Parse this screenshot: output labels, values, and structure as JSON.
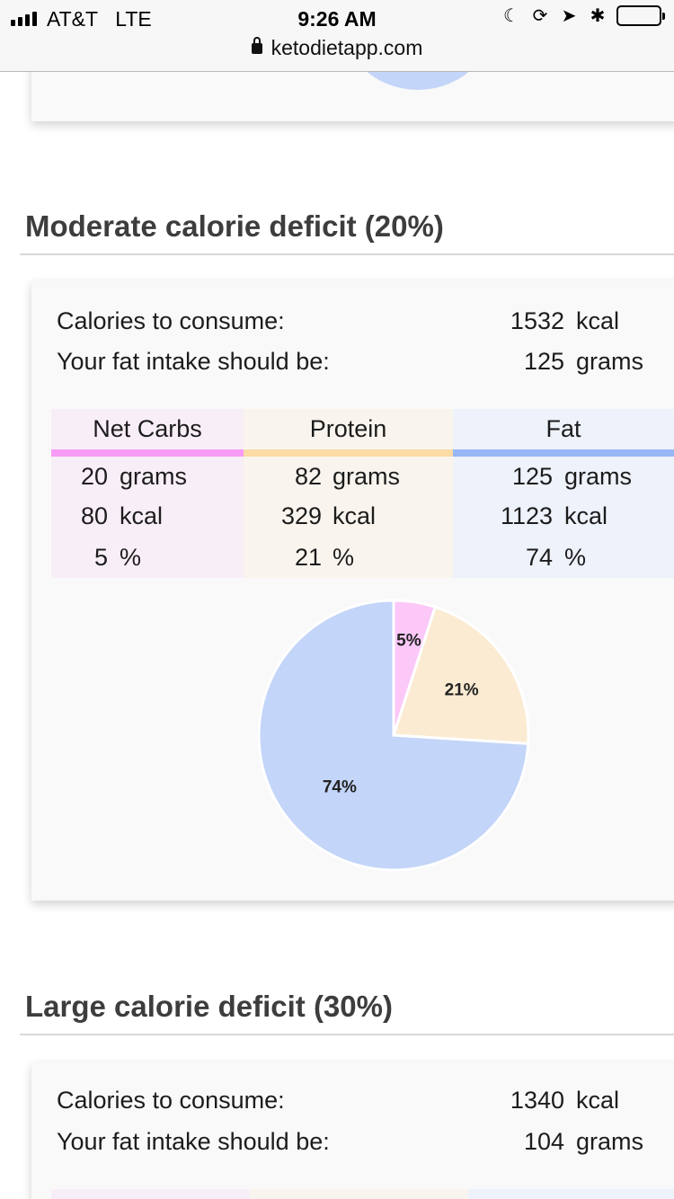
{
  "status_bar": {
    "carrier": "AT&T",
    "network": "LTE",
    "time": "9:26 AM",
    "icons": [
      "moon-icon",
      "rotation-lock-icon",
      "location-icon",
      "bluetooth-icon",
      "battery-icon"
    ]
  },
  "browser": {
    "url": "ketodietapp.com"
  },
  "sections": [
    {
      "title": "Moderate calorie deficit (20%)",
      "calories_label": "Calories to consume:",
      "calories_value": "1532",
      "calories_unit": "kcal",
      "fat_label": "Your fat intake should be:",
      "fat_value": "125",
      "fat_unit": "grams",
      "macros": [
        {
          "name": "Net Carbs",
          "grams": "20",
          "grams_unit": "grams",
          "kcal": "80",
          "kcal_unit": "kcal",
          "pct": "5",
          "pct_unit": "%"
        },
        {
          "name": "Protein",
          "grams": "82",
          "grams_unit": "grams",
          "kcal": "329",
          "kcal_unit": "kcal",
          "pct": "21",
          "pct_unit": "%"
        },
        {
          "name": "Fat",
          "grams": "125",
          "grams_unit": "grams",
          "kcal": "1123",
          "kcal_unit": "kcal",
          "pct": "74",
          "pct_unit": "%"
        }
      ]
    },
    {
      "title": "Large calorie deficit (30%)",
      "calories_label": "Calories to consume:",
      "calories_value": "1340",
      "calories_unit": "kcal",
      "fat_label": "Your fat intake should be:",
      "fat_value": "104",
      "fat_unit": "grams"
    }
  ],
  "colors": {
    "carbs_bar": "#f79bf5",
    "carbs_bg": "#f8eef7",
    "protein_bar": "#fbdba6",
    "protein_bg": "#f9f5ee",
    "fat_bar": "#98b6f6",
    "fat_bg": "#eef2fb",
    "pie_carbs": "#fbc8f8",
    "pie_protein": "#fbebd2",
    "pie_fat": "#c3d5f8"
  },
  "chart_data": {
    "type": "pie",
    "categories": [
      "Net Carbs",
      "Protein",
      "Fat"
    ],
    "values": [
      5,
      21,
      74
    ],
    "data_labels": [
      "5%",
      "21%",
      "74%"
    ]
  }
}
